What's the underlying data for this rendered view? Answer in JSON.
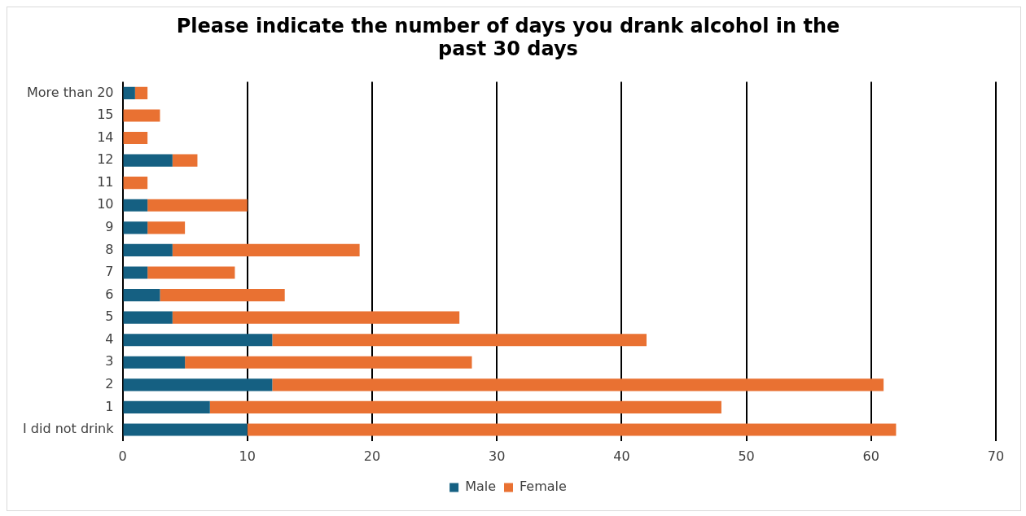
{
  "chart_data": {
    "type": "bar",
    "title": "Please indicate the number of days you drank alcohol in the past 30 days",
    "orientation": "horizontal",
    "stacked": true,
    "categories": [
      "More than 20",
      "15",
      "14",
      "12",
      "11",
      "10",
      "9",
      "8",
      "7",
      "6",
      "5",
      "4",
      "3",
      "2",
      "1",
      "I did not drink"
    ],
    "series": [
      {
        "name": "Male",
        "color": "#156082",
        "values": [
          1,
          0,
          0,
          4,
          0,
          2,
          2,
          4,
          2,
          3,
          4,
          12,
          5,
          12,
          7,
          10
        ]
      },
      {
        "name": "Female",
        "color": "#e97132",
        "values": [
          1,
          3,
          2,
          2,
          2,
          8,
          3,
          15,
          7,
          10,
          23,
          30,
          23,
          49,
          41,
          52
        ]
      }
    ],
    "xlim": [
      0,
      70
    ],
    "xticks": [
      0,
      10,
      20,
      30,
      40,
      50,
      60,
      70
    ],
    "grid": "x",
    "legend": "bottom"
  }
}
